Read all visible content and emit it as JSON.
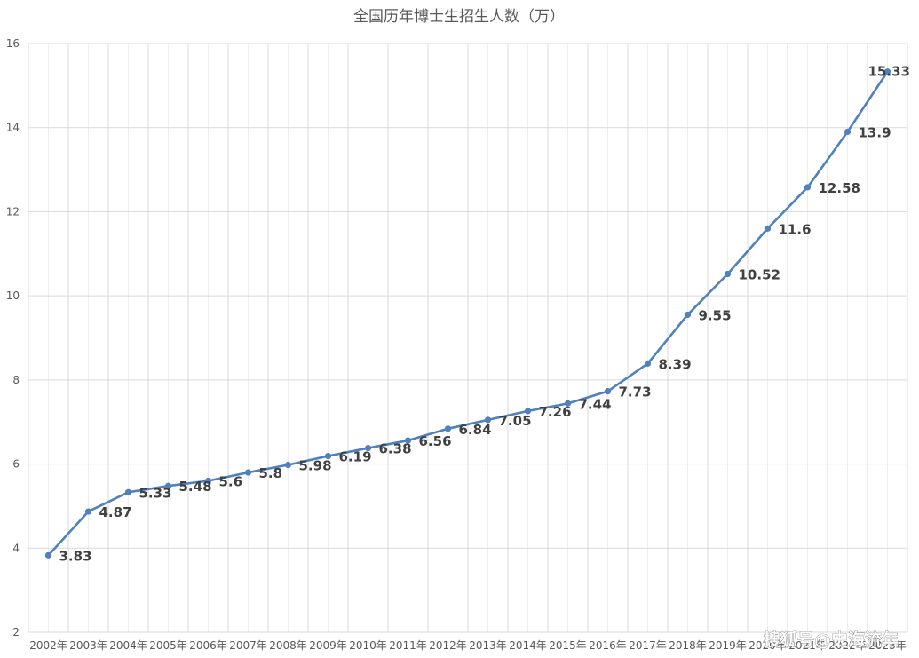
{
  "chart_data": {
    "type": "line",
    "title": "全国历年博士生招生人数（万）",
    "xlabel": "",
    "ylabel": "",
    "categories": [
      "2002年",
      "2003年",
      "2004年",
      "2005年",
      "2006年",
      "2007年",
      "2008年",
      "2009年",
      "2010年",
      "2011年",
      "2012年",
      "2013年",
      "2014年",
      "2015年",
      "2016年",
      "2017年",
      "2018年",
      "2019年",
      "2020年",
      "2021年",
      "2022年",
      "2023年"
    ],
    "series": [
      {
        "values": [
          3.83,
          4.87,
          5.33,
          5.48,
          5.6,
          5.8,
          5.98,
          6.19,
          6.38,
          6.56,
          6.84,
          7.05,
          7.26,
          7.44,
          7.73,
          8.39,
          9.55,
          10.52,
          11.6,
          12.58,
          13.9,
          15.33
        ]
      }
    ],
    "data_labels": [
      "3.83",
      "4.87",
      "5.33",
      "5.48",
      "5.6",
      "5.8",
      "5.98",
      "6.19",
      "6.38",
      "6.56",
      "6.84",
      "7.05",
      "7.26",
      "7.44",
      "7.73",
      "8.39",
      "9.55",
      "10.52",
      "11.6",
      "12.58",
      "13.9",
      "15.33"
    ],
    "ylim": [
      2,
      16
    ],
    "yticks": [
      "2",
      "4",
      "6",
      "8",
      "10",
      "12",
      "14",
      "16"
    ],
    "grid": true,
    "legend": "none",
    "line_color": "#4f81bd",
    "marker_color": "#4f81bd"
  },
  "watermark": "搜狐号@史海流年"
}
